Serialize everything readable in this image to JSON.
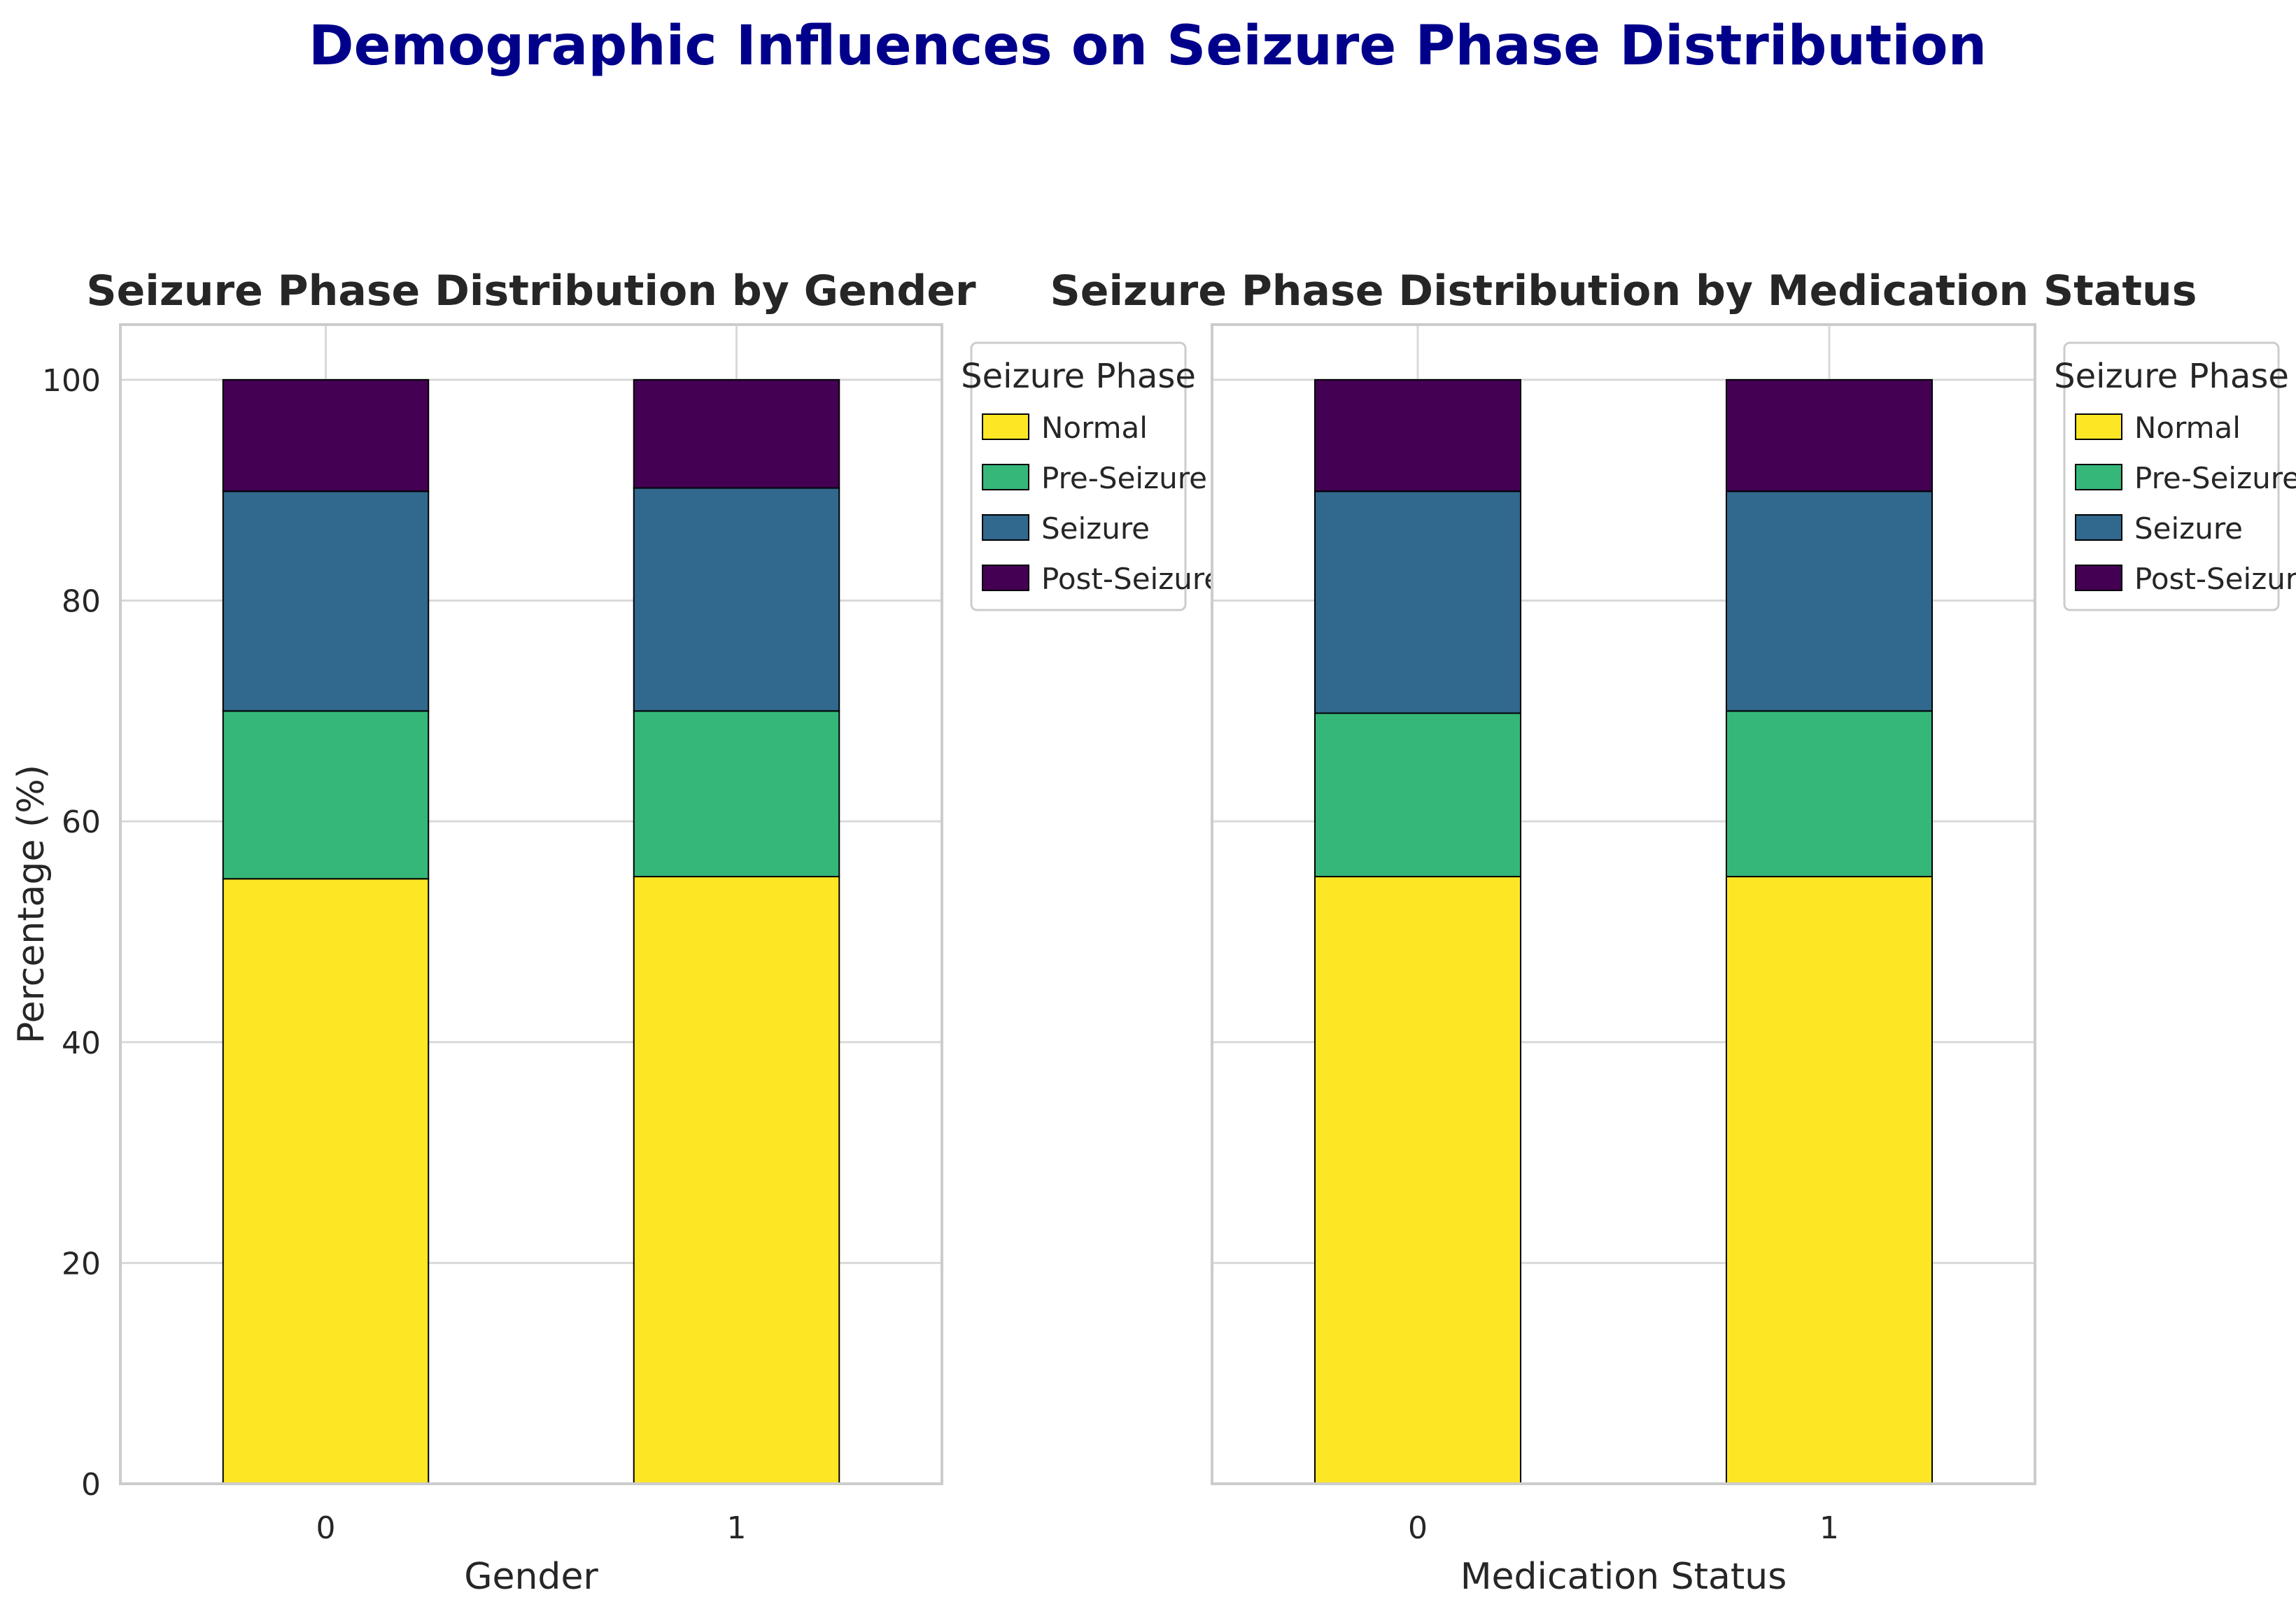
{
  "suptitle": "Demographic Influences on Seizure Phase Distribution",
  "colors": {
    "Normal": "#fde725",
    "Pre-Seizure": "#35b779",
    "Seizure": "#31688e",
    "Post-Seizure": "#440154",
    "grid": "#d9d9d9",
    "spine": "#cccccc",
    "title": "#00008b"
  },
  "chart_data": [
    {
      "type": "bar",
      "stacked": true,
      "title": "Seizure Phase Distribution by Gender",
      "xlabel": "Gender",
      "ylabel": "Percentage (%)",
      "ylim": [
        0,
        105
      ],
      "yticks": [
        0,
        20,
        40,
        60,
        80,
        100
      ],
      "categories": [
        "0",
        "1"
      ],
      "legend_title": "Seizure Phase",
      "legend_position": "outside-upper-right",
      "series": [
        {
          "name": "Normal",
          "values": [
            54.8,
            55.0
          ]
        },
        {
          "name": "Pre-Seizure",
          "values": [
            15.2,
            15.0
          ]
        },
        {
          "name": "Seizure",
          "values": [
            19.9,
            20.2
          ]
        },
        {
          "name": "Post-Seizure",
          "values": [
            10.1,
            9.8
          ]
        }
      ]
    },
    {
      "type": "bar",
      "stacked": true,
      "title": "Seizure Phase Distribution by Medication Status",
      "xlabel": "Medication Status",
      "ylabel": "",
      "ylim": [
        0,
        105
      ],
      "yticks": [
        0,
        20,
        40,
        60,
        80,
        100
      ],
      "categories": [
        "0",
        "1"
      ],
      "legend_title": "Seizure Phase",
      "legend_position": "outside-upper-right",
      "series": [
        {
          "name": "Normal",
          "values": [
            55.0,
            55.0
          ]
        },
        {
          "name": "Pre-Seizure",
          "values": [
            14.8,
            15.0
          ]
        },
        {
          "name": "Seizure",
          "values": [
            20.1,
            19.9
          ]
        },
        {
          "name": "Post-Seizure",
          "values": [
            10.1,
            10.1
          ]
        }
      ]
    }
  ]
}
